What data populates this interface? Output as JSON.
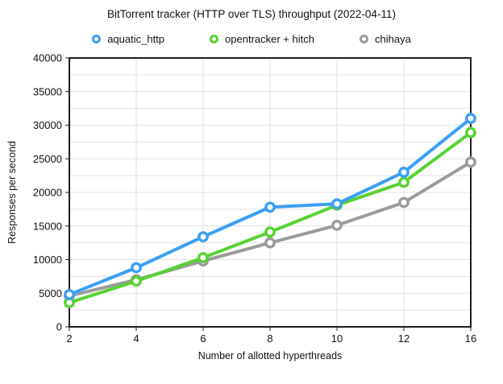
{
  "title": "BitTorrent tracker (HTTP over TLS) throughput (2022-04-11)",
  "legend": {
    "items": [
      {
        "label": "aquatic_http",
        "color": "#3b9ff5"
      },
      {
        "label": "opentracker + hitch",
        "color": "#57d233"
      },
      {
        "label": "chihaya",
        "color": "#9b9b9b"
      }
    ]
  },
  "chart_data": {
    "type": "line",
    "title": "BitTorrent tracker (HTTP over TLS) throughput (2022-04-11)",
    "xlabel": "Number of allotted hyperthreads",
    "ylabel": "Responses per second",
    "categories": [
      2,
      4,
      6,
      8,
      10,
      12,
      16
    ],
    "xtick_labels": [
      "2",
      "4",
      "6",
      "8",
      "10",
      "12",
      "16"
    ],
    "series": [
      {
        "name": "aquatic_http",
        "color": "#3b9ff5",
        "values": [
          4800,
          8800,
          13400,
          17800,
          18300,
          23000,
          31000
        ]
      },
      {
        "name": "opentracker + hitch",
        "color": "#57d233",
        "values": [
          3600,
          6800,
          10300,
          14100,
          18100,
          21500,
          28900
        ]
      },
      {
        "name": "chihaya",
        "color": "#9b9b9b",
        "values": [
          4600,
          7000,
          9800,
          12500,
          15100,
          18500,
          24500
        ]
      }
    ],
    "ylim": [
      0,
      40000
    ],
    "ytick_step": 5000,
    "yticks": [
      0,
      5000,
      10000,
      15000,
      20000,
      25000,
      30000,
      35000,
      40000
    ],
    "grid_minor_step": 2500,
    "grid": true,
    "legend_position": "top",
    "colors": {
      "grid": "#e2e2e2",
      "axis": "#1f1f1f",
      "text": "#111111",
      "background": "#ffffff"
    }
  }
}
